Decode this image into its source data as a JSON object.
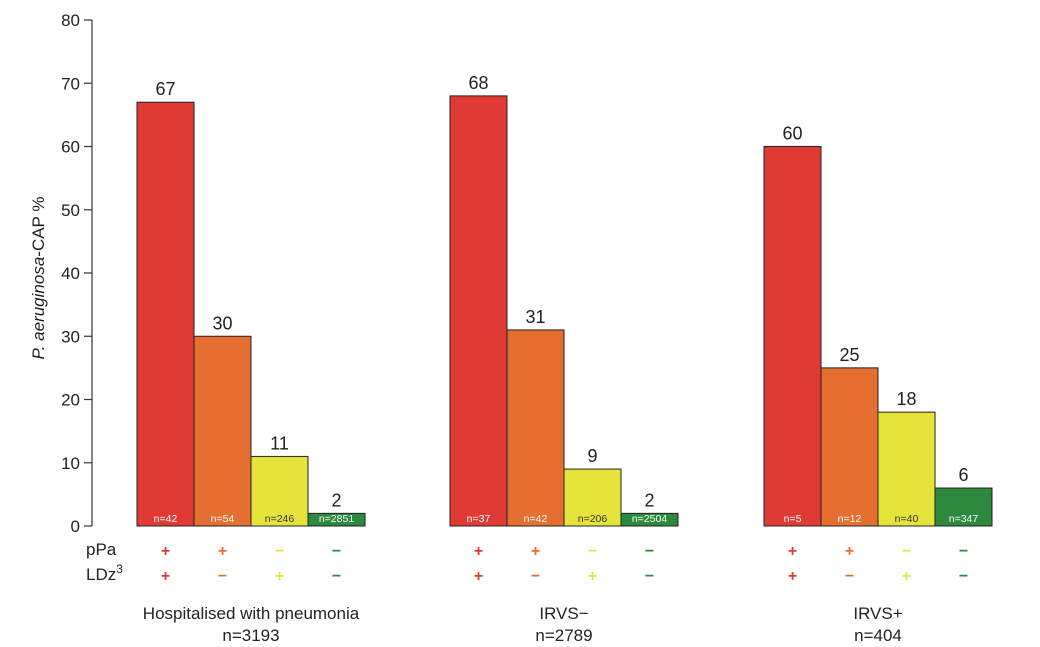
{
  "chart_data": {
    "type": "bar",
    "ylabel_italic": "P. aeruginosa",
    "ylabel_rest": "-CAP %",
    "ylim": [
      0,
      80
    ],
    "yticks": [
      0,
      10,
      20,
      30,
      40,
      50,
      60,
      70,
      80
    ],
    "grid": false,
    "legend": "none",
    "row_labels": {
      "ppa": "pPa",
      "ldz": "LDz",
      "ldz_sup": "3"
    },
    "colors": {
      "red": "#e03a35",
      "orange": "#e56f31",
      "yellow": "#e6e43a",
      "green": "#2b8a3e"
    },
    "groups": [
      {
        "label": "Hospitalised with pneumonia",
        "n": "n=3193",
        "values": [
          67,
          30,
          11,
          2
        ],
        "counts": [
          "n=42",
          "n=54",
          "n=246",
          "n=2851"
        ],
        "ppa": [
          "+",
          "+",
          "−",
          "−"
        ],
        "ldz": [
          "+",
          "−",
          "+",
          "−"
        ]
      },
      {
        "label": "IRVS−",
        "n": "n=2789",
        "values": [
          68,
          31,
          9,
          2
        ],
        "counts": [
          "n=37",
          "n=42",
          "n=206",
          "n=2504"
        ],
        "ppa": [
          "+",
          "+",
          "−",
          "−"
        ],
        "ldz": [
          "+",
          "−",
          "+",
          "−"
        ]
      },
      {
        "label": "IRVS+",
        "n": "n=404",
        "values": [
          60,
          25,
          18,
          6
        ],
        "counts": [
          "n=5",
          "n=12",
          "n=40",
          "n=347"
        ],
        "ppa": [
          "+",
          "+",
          "−",
          "−"
        ],
        "ldz": [
          "+",
          "−",
          "+",
          "−"
        ]
      }
    ],
    "bar_colors": [
      "red",
      "orange",
      "yellow",
      "green"
    ]
  }
}
